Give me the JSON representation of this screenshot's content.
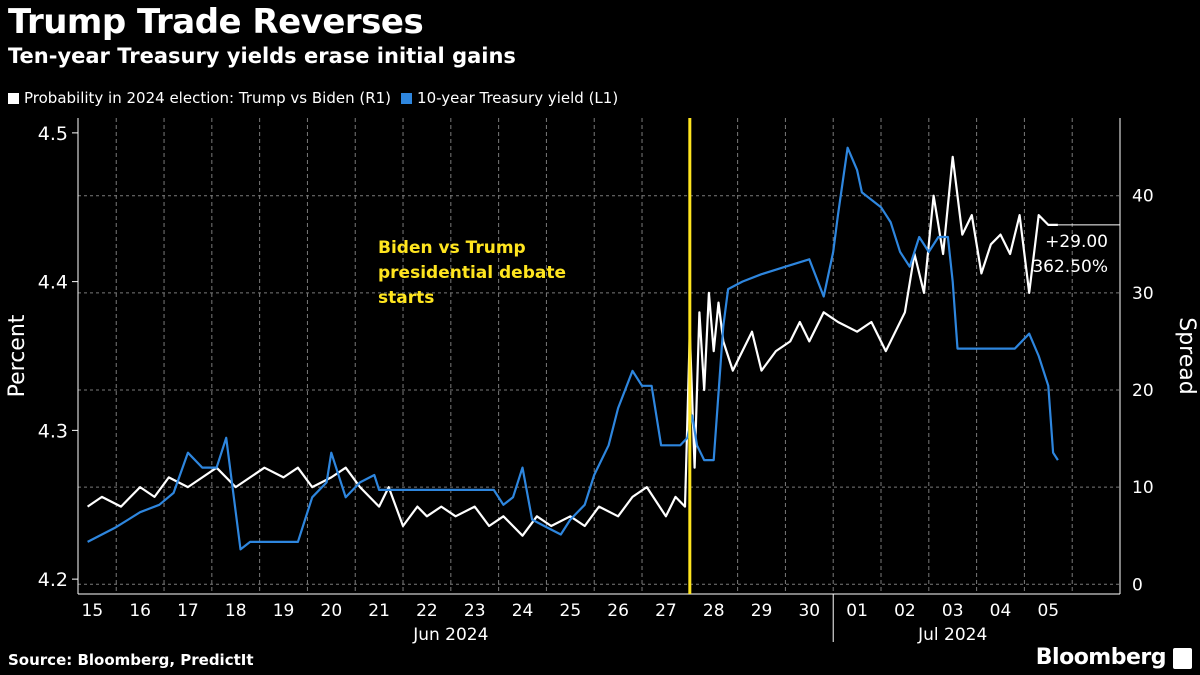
{
  "title": "Trump Trade Reverses",
  "subtitle": "Ten-year Treasury yields erase initial gains",
  "legend": [
    {
      "label": "Probability in 2024 election: Trump vs Biden  (R1)",
      "color": "#ffffff"
    },
    {
      "label": "10-year Treasury yield (L1)",
      "color": "#2e86de"
    }
  ],
  "source": "Source: Bloomberg, PredictIt",
  "brand": "Bloomberg",
  "chart_data": {
    "type": "line",
    "title": "Trump Trade Reverses",
    "subtitle": "Ten-year Treasury yields erase initial gains",
    "ylabel_left": "Percent",
    "ylabel_right": "Spread",
    "ylim_left": [
      4.19,
      4.51
    ],
    "yticks_left": [
      "4.2",
      "4.3",
      "4.4",
      "4.5"
    ],
    "ylim_right": [
      -1,
      48
    ],
    "yticks_right": [
      "0",
      "10",
      "20",
      "30",
      "40"
    ],
    "xticks": [
      "15",
      "16",
      "17",
      "18",
      "19",
      "20",
      "21",
      "22",
      "23",
      "24",
      "25",
      "26",
      "27",
      "28",
      "29",
      "30",
      "01",
      "02",
      "03",
      "04",
      "05"
    ],
    "month_labels": [
      "Jun 2024",
      "Jul 2024"
    ],
    "annotation": {
      "text_lines": [
        "Biden vs Trump",
        "presidential debate",
        "starts"
      ],
      "color": "#ffe51f",
      "x": 27.5
    },
    "last_value_label": {
      "lines": [
        "+29.00",
        "362.50%"
      ],
      "value": 37
    },
    "series": [
      {
        "name": "Probability in 2024 election: Trump vs Biden",
        "axis": "right",
        "color": "#ffffff",
        "x": [
          14.9,
          15.2,
          15.6,
          16.0,
          16.3,
          16.6,
          17.0,
          17.3,
          17.6,
          18.0,
          18.3,
          18.6,
          19.0,
          19.3,
          19.6,
          20.0,
          20.3,
          20.6,
          21.0,
          21.2,
          21.5,
          21.8,
          22.0,
          22.3,
          22.6,
          23.0,
          23.3,
          23.6,
          24.0,
          24.3,
          24.6,
          25.0,
          25.3,
          25.6,
          26.0,
          26.3,
          26.6,
          27.0,
          27.2,
          27.4,
          27.5,
          27.6,
          27.7,
          27.8,
          27.9,
          28.0,
          28.1,
          28.2,
          28.4,
          28.6,
          28.8,
          29.0,
          29.3,
          29.6,
          29.8,
          30.0,
          30.3,
          30.6,
          31.0,
          31.3,
          31.6,
          32.0,
          32.2,
          32.4,
          32.6,
          32.8,
          33.0,
          33.2,
          33.4,
          33.6,
          33.8,
          34.0,
          34.2,
          34.4,
          34.6,
          34.8,
          35.0,
          35.2
        ],
        "values": [
          8,
          9,
          8,
          10,
          9,
          11,
          10,
          11,
          12,
          10,
          11,
          12,
          11,
          12,
          10,
          11,
          12,
          10,
          8,
          10,
          6,
          8,
          7,
          8,
          7,
          8,
          6,
          7,
          5,
          7,
          6,
          7,
          6,
          8,
          7,
          9,
          10,
          7,
          9,
          8,
          26,
          12,
          28,
          20,
          30,
          24,
          29,
          25,
          22,
          24,
          26,
          22,
          24,
          25,
          27,
          25,
          28,
          27,
          26,
          27,
          24,
          28,
          34,
          30,
          40,
          34,
          44,
          36,
          38,
          32,
          35,
          36,
          34,
          38,
          30,
          38,
          37,
          37
        ]
      },
      {
        "name": "10-year Treasury yield",
        "axis": "left",
        "color": "#2e86de",
        "x": [
          14.9,
          15.5,
          16.0,
          16.4,
          16.7,
          17.0,
          17.3,
          17.6,
          17.8,
          18.1,
          18.3,
          18.6,
          19.0,
          19.3,
          19.6,
          19.9,
          20.0,
          20.3,
          20.6,
          20.9,
          21.0,
          21.4,
          22.0,
          22.5,
          23.0,
          23.4,
          23.6,
          23.8,
          24.0,
          24.2,
          24.5,
          24.8,
          25.0,
          25.3,
          25.5,
          25.8,
          26.0,
          26.3,
          26.5,
          26.7,
          26.9,
          27.1,
          27.3,
          27.45,
          27.55,
          27.65,
          27.8,
          28.0,
          28.2,
          28.3,
          28.6,
          29.0,
          29.5,
          30.0,
          30.3,
          30.5,
          30.6,
          30.8,
          31.0,
          31.1,
          31.3,
          31.5,
          31.7,
          31.9,
          32.1,
          32.3,
          32.5,
          32.7,
          32.9,
          33.0,
          33.1,
          33.4,
          33.7,
          34.0,
          34.3,
          34.6,
          34.8,
          35.0,
          35.1,
          35.2
        ],
        "values": [
          4.225,
          4.235,
          4.245,
          4.25,
          4.258,
          4.285,
          4.275,
          4.275,
          4.295,
          4.22,
          4.225,
          4.225,
          4.225,
          4.225,
          4.255,
          4.265,
          4.285,
          4.255,
          4.265,
          4.27,
          4.26,
          4.26,
          4.26,
          4.26,
          4.26,
          4.26,
          4.25,
          4.255,
          4.275,
          4.24,
          4.235,
          4.23,
          4.24,
          4.25,
          4.27,
          4.29,
          4.315,
          4.34,
          4.33,
          4.33,
          4.29,
          4.29,
          4.29,
          4.295,
          4.31,
          4.29,
          4.28,
          4.28,
          4.37,
          4.395,
          4.4,
          4.405,
          4.41,
          4.415,
          4.39,
          4.42,
          4.445,
          4.49,
          4.475,
          4.46,
          4.455,
          4.45,
          4.44,
          4.42,
          4.41,
          4.43,
          4.42,
          4.43,
          4.43,
          4.4,
          4.355,
          4.355,
          4.355,
          4.355,
          4.355,
          4.365,
          4.35,
          4.33,
          4.285,
          4.28
        ]
      }
    ]
  }
}
